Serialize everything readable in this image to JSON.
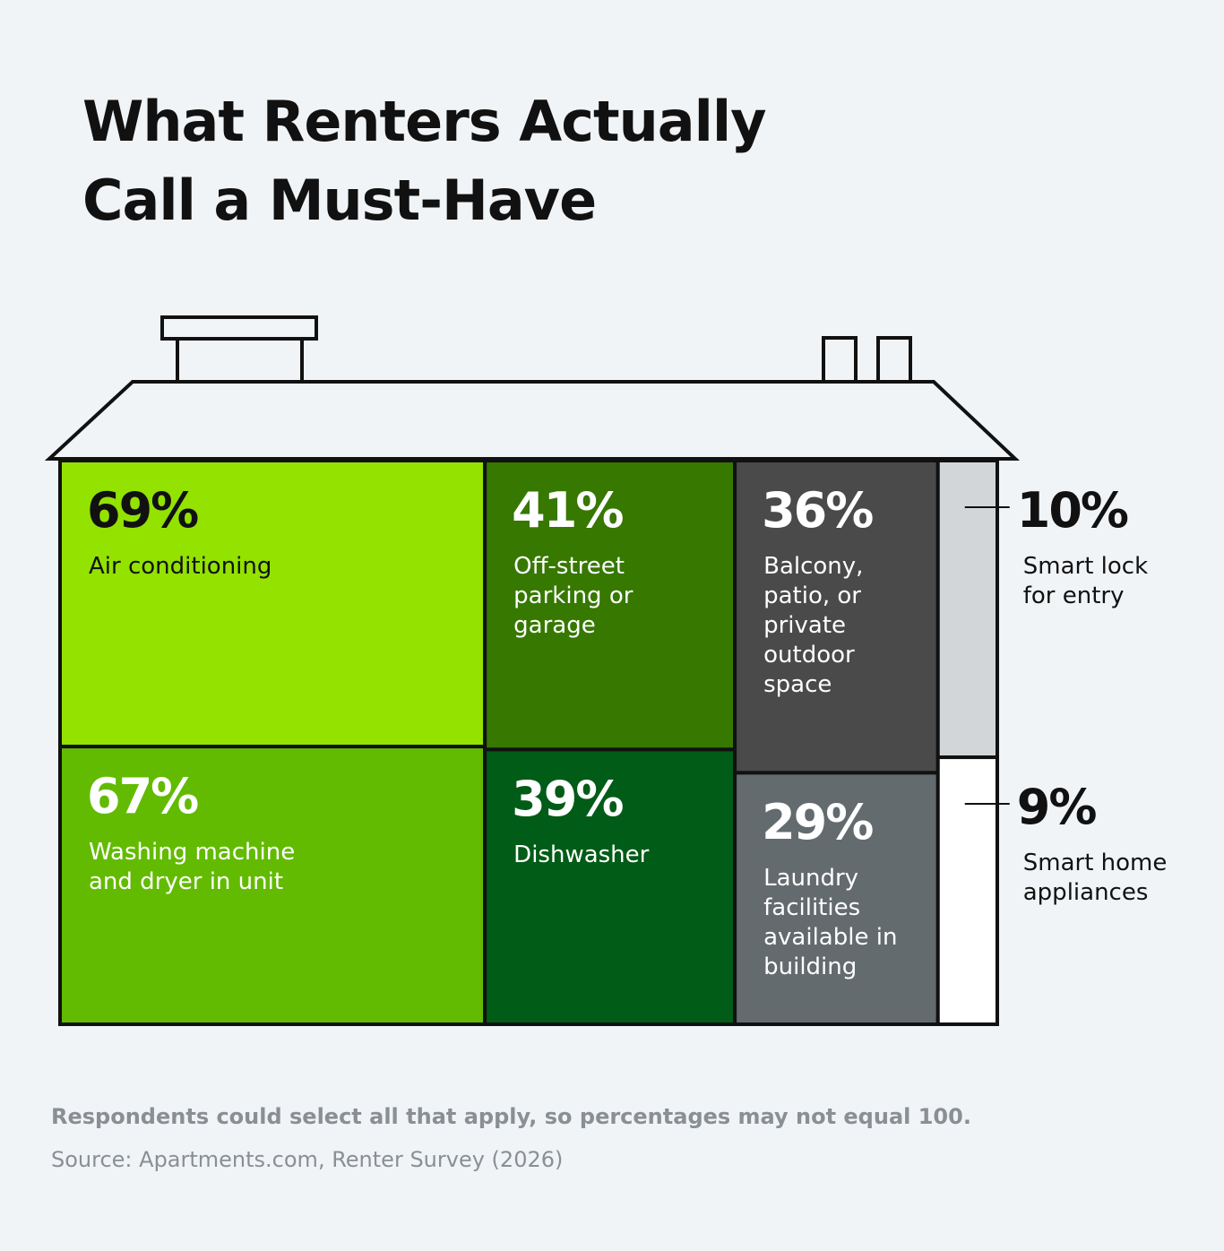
{
  "chart_data": {
    "type": "treemap",
    "title": "What Renters Actually Call a Must-Have",
    "categories": [
      "Air conditioning",
      "Washing machine and dryer in unit",
      "Off-street parking or garage",
      "Dishwasher",
      "Balcony, patio, or private outdoor space",
      "Laundry facilities available in building",
      "Smart lock for entry",
      "Smart home appliances"
    ],
    "values": [
      69,
      67,
      41,
      39,
      36,
      29,
      10,
      9
    ],
    "value_labels": [
      "69%",
      "67%",
      "41%",
      "39%",
      "36%",
      "29%",
      "10%",
      "9%"
    ],
    "colors": [
      "#93e200",
      "#62bb00",
      "#367800",
      "#005c16",
      "#4a4a4a",
      "#636b6e",
      "#d3d6d9",
      "#ffffff"
    ],
    "note": "Respondents could select all that apply, so percentages may not equal 100.",
    "source": "Source: Apartments.com, Renter Survey (2026)"
  }
}
